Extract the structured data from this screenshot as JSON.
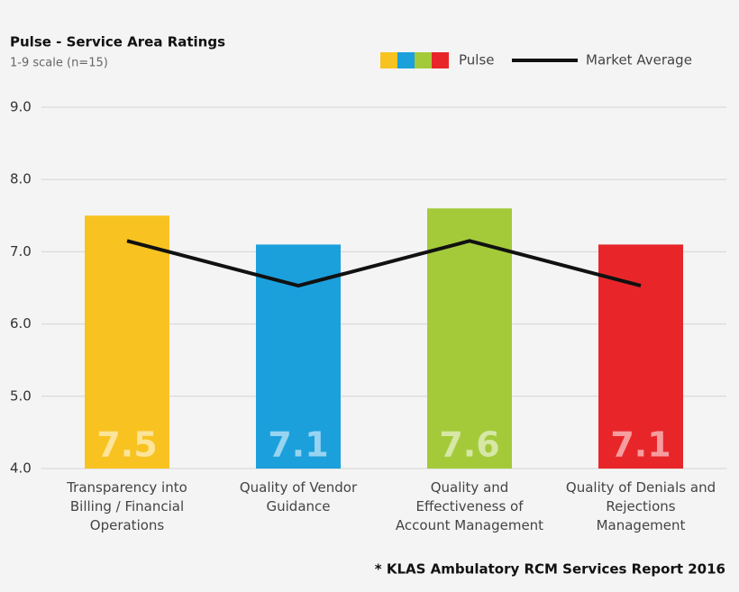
{
  "chart_data": {
    "type": "bar",
    "title": "Pulse - Service Area Ratings",
    "subtitle": "1-9 scale (n=15)",
    "footnote": "* KLAS Ambulatory RCM Services Report 2016",
    "categories": [
      "Transparency into\nBilling / Financial\nOperations",
      "Quality of Vendor\nGuidance",
      "Quality and\nEffectiveness of\nAccount Management",
      "Quality of Denials and\nRejections Management"
    ],
    "series": [
      {
        "name": "Pulse",
        "colors": [
          "#f8c320",
          "#1ba0dc",
          "#a4ca3a",
          "#e8262a"
        ],
        "values": [
          7.5,
          7.1,
          7.6,
          7.1
        ]
      },
      {
        "name": "Market Average",
        "type": "line",
        "color": "#111111",
        "values": [
          7.15,
          6.53,
          7.15,
          6.53
        ]
      }
    ],
    "ylim": [
      4,
      9
    ],
    "yticks": [
      {
        "value": 4,
        "label": "4.0"
      },
      {
        "value": 5,
        "label": "5.0"
      },
      {
        "value": 6,
        "label": "6.0"
      },
      {
        "value": 7,
        "label": "7.0"
      },
      {
        "value": 8,
        "label": "8.0"
      },
      {
        "value": 9,
        "label": "9.0"
      }
    ],
    "grid": true,
    "legend": "top-right"
  }
}
